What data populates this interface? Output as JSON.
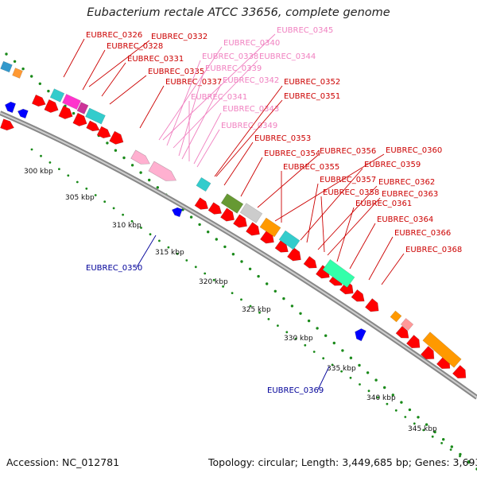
{
  "title": "Eubacterium rectale ATCC 33656, complete genome",
  "footer": {
    "accession": "Accession: NC_012781",
    "topology": "Topology: circular; Length: 3,449,685 bp; Genes: 3,693"
  },
  "colors": {
    "forward_gene": "#ff0000",
    "reverse_gene": "#0000ff",
    "rna_gene": "#ffb0d0",
    "backbone": "#888888",
    "tick_dots": "#1a8a1a",
    "label_red": "#cc0000",
    "label_pink": "#f080c0",
    "label_blue": "#000099"
  },
  "ticks": [
    "300 kbp",
    "305 kbp",
    "310 kbp",
    "315 kbp",
    "320 kbp",
    "325 kbp",
    "330 kbp",
    "335 kbp",
    "340 kbp",
    "345 kbp"
  ],
  "gene_labels": [
    {
      "text": "EUBREC_0326",
      "color": "red"
    },
    {
      "text": "EUBREC_0332",
      "color": "red"
    },
    {
      "text": "EUBREC_0328",
      "color": "red"
    },
    {
      "text": "EUBREC_0331",
      "color": "red"
    },
    {
      "text": "EUBREC_0335",
      "color": "red"
    },
    {
      "text": "EUBREC_0337",
      "color": "red"
    },
    {
      "text": "EUBREC_0340",
      "color": "pink"
    },
    {
      "text": "EUBREC_0345",
      "color": "pink"
    },
    {
      "text": "EUBREC_0338",
      "color": "pink"
    },
    {
      "text": "EUBREC_0344",
      "color": "pink"
    },
    {
      "text": "EUBREC_0339",
      "color": "pink"
    },
    {
      "text": "EUBREC_0342",
      "color": "pink"
    },
    {
      "text": "EUBREC_0341",
      "color": "pink"
    },
    {
      "text": "EUBREC_0343",
      "color": "pink"
    },
    {
      "text": "EUBREC_0349",
      "color": "pink"
    },
    {
      "text": "EUBREC_0352",
      "color": "red"
    },
    {
      "text": "EUBREC_0351",
      "color": "red"
    },
    {
      "text": "EUBREC_0353",
      "color": "red"
    },
    {
      "text": "EUBREC_0354",
      "color": "red"
    },
    {
      "text": "EUBREC_0356",
      "color": "red"
    },
    {
      "text": "EUBREC_0360",
      "color": "red"
    },
    {
      "text": "EUBREC_0355",
      "color": "red"
    },
    {
      "text": "EUBREC_0359",
      "color": "red"
    },
    {
      "text": "EUBREC_0357",
      "color": "red"
    },
    {
      "text": "EUBREC_0362",
      "color": "red"
    },
    {
      "text": "EUBREC_0358",
      "color": "red"
    },
    {
      "text": "EUBREC_0363",
      "color": "red"
    },
    {
      "text": "EUBREC_0361",
      "color": "red"
    },
    {
      "text": "EUBREC_0364",
      "color": "red"
    },
    {
      "text": "EUBREC_0366",
      "color": "red"
    },
    {
      "text": "EUBREC_0368",
      "color": "red"
    },
    {
      "text": "EUBREC_0350",
      "color": "blue"
    },
    {
      "text": "EUBREC_0369",
      "color": "blue"
    }
  ]
}
